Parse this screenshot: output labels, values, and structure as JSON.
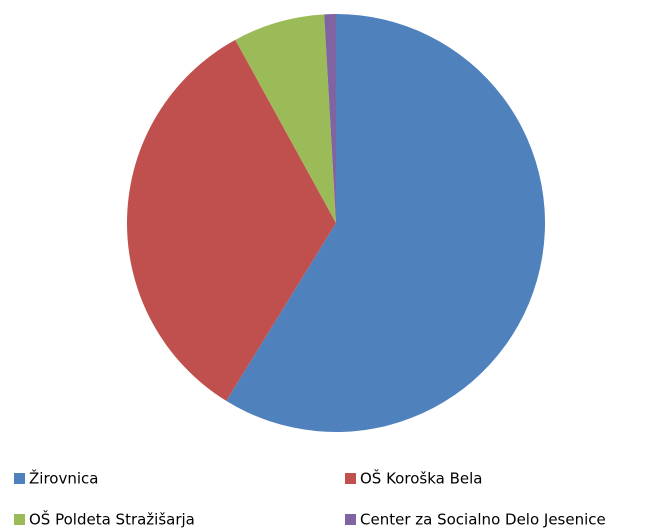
{
  "chart_data": {
    "type": "pie",
    "categories": [
      "Žirovnica",
      "OŠ Koroška Bela",
      "OŠ Poldeta Stražišarja",
      "Center za Socialno Delo Jesenice"
    ],
    "values": [
      58.8,
      33.2,
      7.1,
      0.9
    ],
    "colors": [
      "#4f81bd",
      "#c0504d",
      "#9bbb59",
      "#8064a2"
    ],
    "legend": "bottom"
  }
}
